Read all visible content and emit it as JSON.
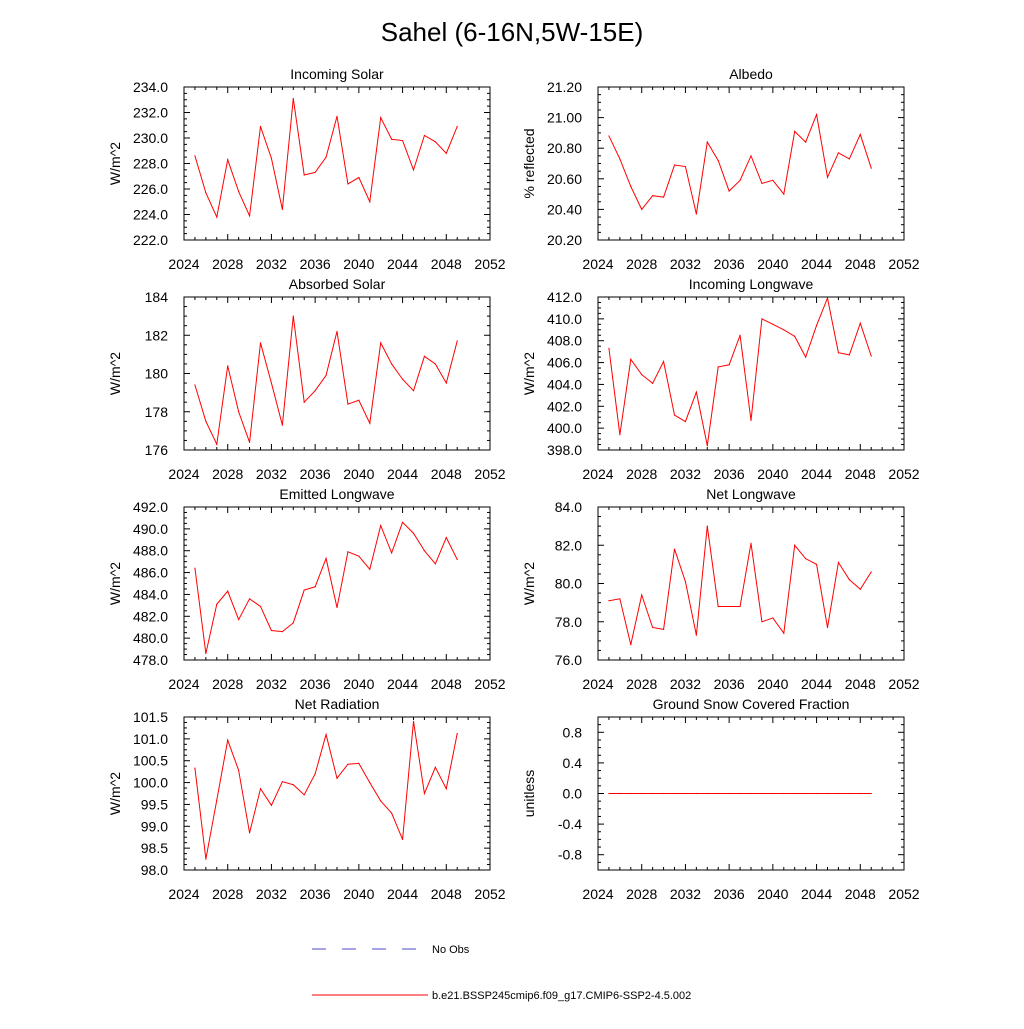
{
  "title": "Sahel (6-16N,5W-15E)",
  "colors": {
    "model": "#ff0000",
    "obs": "#4a4acd",
    "axis": "#000000"
  },
  "legend": {
    "obs_label": "No Obs",
    "model_label": "b.e21.BSSP245cmip6.f09_g17.CMIP6-SSP2-4.5.002"
  },
  "chart_data": [
    {
      "type": "line",
      "title": "Incoming Solar",
      "ylabel": "W/m^2",
      "xlim": [
        2024,
        2052
      ],
      "ylim": [
        222,
        234
      ],
      "xticks": [
        2024,
        2028,
        2032,
        2036,
        2040,
        2044,
        2048,
        2052
      ],
      "yticks": [
        222,
        224,
        226,
        228,
        230,
        232,
        234
      ],
      "ydecimals": 1,
      "x": [
        2025,
        2026,
        2027,
        2028,
        2029,
        2030,
        2031,
        2032,
        2033,
        2034,
        2035,
        2036,
        2037,
        2038,
        2039,
        2040,
        2041,
        2042,
        2043,
        2044,
        2045,
        2046,
        2047,
        2048,
        2049
      ],
      "series": [
        {
          "name": "b.e21.BSSP245cmip6.f09_g17.CMIP6-SSP2-4.5.002",
          "values": [
            228.6,
            225.7,
            223.8,
            228.3,
            225.8,
            223.9,
            230.9,
            228.4,
            224.4,
            233.1,
            227.1,
            227.3,
            228.5,
            231.7,
            226.4,
            226.9,
            225.0,
            231.6,
            229.9,
            229.8,
            227.5,
            230.2,
            229.7,
            228.8,
            230.9
          ]
        }
      ]
    },
    {
      "type": "line",
      "title": "Albedo",
      "ylabel": "% reflected",
      "xlim": [
        2024,
        2052
      ],
      "ylim": [
        20.2,
        21.2
      ],
      "xticks": [
        2024,
        2028,
        2032,
        2036,
        2040,
        2044,
        2048,
        2052
      ],
      "yticks": [
        20.2,
        20.4,
        20.6,
        20.8,
        21.0,
        21.2
      ],
      "ydecimals": 2,
      "x": [
        2025,
        2026,
        2027,
        2028,
        2029,
        2030,
        2031,
        2032,
        2033,
        2034,
        2035,
        2036,
        2037,
        2038,
        2039,
        2040,
        2041,
        2042,
        2043,
        2044,
        2045,
        2046,
        2047,
        2048,
        2049
      ],
      "series": [
        {
          "name": "b.e21.BSSP245cmip6.f09_g17.CMIP6-SSP2-4.5.002",
          "values": [
            20.88,
            20.73,
            20.55,
            20.4,
            20.49,
            20.48,
            20.69,
            20.68,
            20.37,
            20.84,
            20.72,
            20.52,
            20.59,
            20.75,
            20.57,
            20.59,
            20.5,
            20.91,
            20.84,
            21.02,
            20.61,
            20.77,
            20.73,
            20.89,
            20.67
          ]
        }
      ]
    },
    {
      "type": "line",
      "title": "Absorbed Solar",
      "ylabel": "W/m^2",
      "xlim": [
        2024,
        2052
      ],
      "ylim": [
        176,
        184
      ],
      "xticks": [
        2024,
        2028,
        2032,
        2036,
        2040,
        2044,
        2048,
        2052
      ],
      "yticks": [
        176,
        178,
        180,
        182,
        184
      ],
      "ydecimals": 0,
      "x": [
        2025,
        2026,
        2027,
        2028,
        2029,
        2030,
        2031,
        2032,
        2033,
        2034,
        2035,
        2036,
        2037,
        2038,
        2039,
        2040,
        2041,
        2042,
        2043,
        2044,
        2045,
        2046,
        2047,
        2048,
        2049
      ],
      "series": [
        {
          "name": "b.e21.BSSP245cmip6.f09_g17.CMIP6-SSP2-4.5.002",
          "values": [
            179.4,
            177.5,
            176.3,
            180.4,
            178.0,
            176.4,
            181.6,
            179.5,
            177.3,
            183.0,
            178.5,
            179.1,
            179.9,
            182.2,
            178.4,
            178.6,
            177.4,
            181.6,
            180.5,
            179.7,
            179.1,
            180.9,
            180.5,
            179.5,
            181.7
          ]
        }
      ]
    },
    {
      "type": "line",
      "title": "Incoming Longwave",
      "ylabel": "W/m^2",
      "xlim": [
        2024,
        2052
      ],
      "ylim": [
        398,
        412
      ],
      "xticks": [
        2024,
        2028,
        2032,
        2036,
        2040,
        2044,
        2048,
        2052
      ],
      "yticks": [
        398,
        400,
        402,
        404,
        406,
        408,
        410,
        412
      ],
      "ydecimals": 1,
      "x": [
        2025,
        2026,
        2027,
        2028,
        2029,
        2030,
        2031,
        2032,
        2033,
        2034,
        2035,
        2036,
        2037,
        2038,
        2039,
        2040,
        2041,
        2042,
        2043,
        2044,
        2045,
        2046,
        2047,
        2048,
        2049
      ],
      "series": [
        {
          "name": "b.e21.BSSP245cmip6.f09_g17.CMIP6-SSP2-4.5.002",
          "values": [
            407.3,
            399.4,
            406.3,
            404.9,
            404.1,
            406.1,
            401.2,
            400.6,
            403.3,
            398.4,
            405.6,
            405.8,
            408.5,
            400.7,
            410.0,
            409.5,
            409.0,
            408.4,
            406.5,
            409.4,
            411.9,
            406.9,
            406.7,
            409.6,
            406.6
          ]
        }
      ]
    },
    {
      "type": "line",
      "title": "Emitted Longwave",
      "ylabel": "W/m^2",
      "xlim": [
        2024,
        2052
      ],
      "ylim": [
        478,
        492
      ],
      "xticks": [
        2024,
        2028,
        2032,
        2036,
        2040,
        2044,
        2048,
        2052
      ],
      "yticks": [
        478,
        480,
        482,
        484,
        486,
        488,
        490,
        492
      ],
      "ydecimals": 1,
      "x": [
        2025,
        2026,
        2027,
        2028,
        2029,
        2030,
        2031,
        2032,
        2033,
        2034,
        2035,
        2036,
        2037,
        2038,
        2039,
        2040,
        2041,
        2042,
        2043,
        2044,
        2045,
        2046,
        2047,
        2048,
        2049
      ],
      "series": [
        {
          "name": "b.e21.BSSP245cmip6.f09_g17.CMIP6-SSP2-4.5.002",
          "values": [
            486.4,
            478.6,
            483.1,
            484.3,
            481.7,
            483.6,
            482.9,
            480.7,
            480.6,
            481.4,
            484.4,
            484.7,
            487.3,
            482.8,
            487.9,
            487.5,
            486.3,
            490.3,
            487.8,
            490.6,
            489.6,
            488.0,
            486.8,
            489.2,
            487.2
          ]
        }
      ]
    },
    {
      "type": "line",
      "title": "Net Longwave",
      "ylabel": "W/m^2",
      "xlim": [
        2024,
        2052
      ],
      "ylim": [
        76,
        84
      ],
      "xticks": [
        2024,
        2028,
        2032,
        2036,
        2040,
        2044,
        2048,
        2052
      ],
      "yticks": [
        76,
        78,
        80,
        82,
        84
      ],
      "ydecimals": 1,
      "x": [
        2025,
        2026,
        2027,
        2028,
        2029,
        2030,
        2031,
        2032,
        2033,
        2034,
        2035,
        2036,
        2037,
        2038,
        2039,
        2040,
        2041,
        2042,
        2043,
        2044,
        2045,
        2046,
        2047,
        2048,
        2049
      ],
      "series": [
        {
          "name": "b.e21.BSSP245cmip6.f09_g17.CMIP6-SSP2-4.5.002",
          "values": [
            79.1,
            79.2,
            76.8,
            79.4,
            77.7,
            77.6,
            81.8,
            80.1,
            77.3,
            83.0,
            78.8,
            78.8,
            78.8,
            82.1,
            78.0,
            78.2,
            77.4,
            82.0,
            81.3,
            81.0,
            77.7,
            81.1,
            80.2,
            79.7,
            80.6
          ]
        }
      ]
    },
    {
      "type": "line",
      "title": "Net Radiation",
      "ylabel": "W/m^2",
      "xlim": [
        2024,
        2052
      ],
      "ylim": [
        98,
        101.5
      ],
      "xticks": [
        2024,
        2028,
        2032,
        2036,
        2040,
        2044,
        2048,
        2052
      ],
      "yticks": [
        98,
        98.5,
        99,
        99.5,
        100,
        100.5,
        101,
        101.5
      ],
      "ydecimals": 1,
      "x": [
        2025,
        2026,
        2027,
        2028,
        2029,
        2030,
        2031,
        2032,
        2033,
        2034,
        2035,
        2036,
        2037,
        2038,
        2039,
        2040,
        2041,
        2042,
        2043,
        2044,
        2045,
        2046,
        2047,
        2048,
        2049
      ],
      "series": [
        {
          "name": "b.e21.BSSP245cmip6.f09_g17.CMIP6-SSP2-4.5.002",
          "values": [
            100.33,
            98.25,
            99.6,
            100.97,
            100.28,
            98.85,
            99.86,
            99.48,
            100.02,
            99.95,
            99.72,
            100.2,
            101.1,
            100.1,
            100.42,
            100.44,
            100.0,
            99.58,
            99.3,
            98.7,
            101.4,
            99.75,
            100.35,
            99.86,
            101.12
          ]
        }
      ]
    },
    {
      "type": "line",
      "title": "Ground Snow Covered Fraction",
      "ylabel": "unitless",
      "xlim": [
        2024,
        2052
      ],
      "ylim": [
        -1,
        1
      ],
      "xticks": [
        2024,
        2028,
        2032,
        2036,
        2040,
        2044,
        2048,
        2052
      ],
      "yticks": [
        -0.8,
        -0.4,
        0,
        0.4,
        0.8
      ],
      "ydecimals": 1,
      "x": [
        2025,
        2026,
        2027,
        2028,
        2029,
        2030,
        2031,
        2032,
        2033,
        2034,
        2035,
        2036,
        2037,
        2038,
        2039,
        2040,
        2041,
        2042,
        2043,
        2044,
        2045,
        2046,
        2047,
        2048,
        2049
      ],
      "series": [
        {
          "name": "b.e21.BSSP245cmip6.f09_g17.CMIP6-SSP2-4.5.002",
          "values": [
            0,
            0,
            0,
            0,
            0,
            0,
            0,
            0,
            0,
            0,
            0,
            0,
            0,
            0,
            0,
            0,
            0,
            0,
            0,
            0,
            0,
            0,
            0,
            0,
            0
          ]
        }
      ]
    }
  ]
}
